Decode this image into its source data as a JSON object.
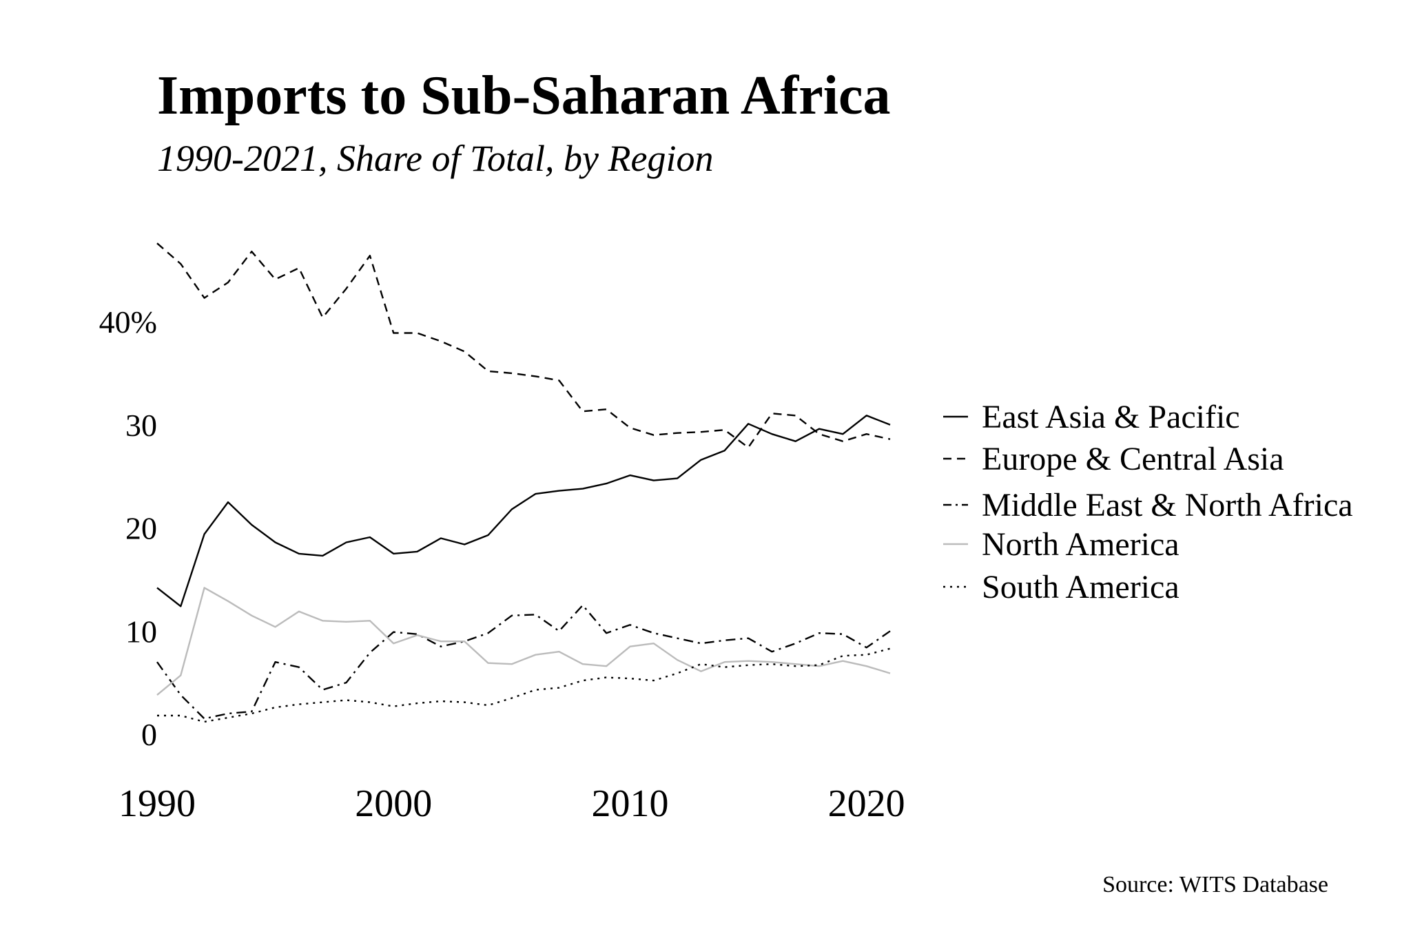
{
  "chart_data": {
    "type": "line",
    "title": "Imports to Sub-Saharan Africa",
    "subtitle": "1990-2021, Share of Total, by Region",
    "source": "Source: WITS Database",
    "xlabel": "",
    "ylabel": "",
    "xlim": [
      1990,
      2021
    ],
    "ylim": [
      0,
      48
    ],
    "grid": false,
    "legend_position": "right",
    "x_ticks": [
      {
        "value": 1990,
        "label": "1990"
      },
      {
        "value": 2000,
        "label": "2000"
      },
      {
        "value": 2010,
        "label": "2010"
      },
      {
        "value": 2020,
        "label": "2020"
      }
    ],
    "y_ticks": [
      {
        "value": 0,
        "label": "0"
      },
      {
        "value": 10,
        "label": "10"
      },
      {
        "value": 20,
        "label": "20"
      },
      {
        "value": 30,
        "label": "30"
      },
      {
        "value": 40,
        "label": "40%"
      }
    ],
    "x": [
      1990,
      1991,
      1992,
      1993,
      1994,
      1995,
      1996,
      1997,
      1998,
      1999,
      2000,
      2001,
      2002,
      2003,
      2004,
      2005,
      2006,
      2007,
      2008,
      2009,
      2010,
      2011,
      2012,
      2013,
      2014,
      2015,
      2016,
      2017,
      2018,
      2019,
      2020,
      2021
    ],
    "series": [
      {
        "name": "East Asia & Pacific",
        "color": "#000000",
        "dash": "solid",
        "values": [
          14.2,
          12.4,
          19.4,
          22.5,
          20.3,
          18.6,
          17.5,
          17.3,
          18.6,
          19.1,
          17.5,
          17.7,
          19.0,
          18.4,
          19.3,
          21.8,
          23.3,
          23.6,
          23.8,
          24.3,
          25.1,
          24.6,
          24.8,
          26.6,
          27.5,
          30.1,
          29.1,
          28.4,
          29.6,
          29.1,
          30.9,
          30.0
        ]
      },
      {
        "name": "Europe & Central Asia",
        "color": "#000000",
        "dash": "dashed",
        "values": [
          47.6,
          45.6,
          42.3,
          43.8,
          46.8,
          44.1,
          45.2,
          40.4,
          43.2,
          46.4,
          38.9,
          38.9,
          38.1,
          37.1,
          35.2,
          35.0,
          34.7,
          34.3,
          31.3,
          31.5,
          29.7,
          29.0,
          29.2,
          29.3,
          29.5,
          27.8,
          31.1,
          30.9,
          29.1,
          28.4,
          29.1,
          28.6
        ]
      },
      {
        "name": "Middle East & North Africa",
        "color": "#000000",
        "dash": "dashdot",
        "values": [
          7.0,
          3.8,
          1.5,
          2.0,
          2.2,
          7.0,
          6.5,
          4.3,
          5.0,
          7.9,
          9.9,
          9.7,
          8.5,
          9.0,
          9.8,
          11.5,
          11.6,
          10.0,
          12.5,
          9.8,
          10.6,
          9.8,
          9.3,
          8.8,
          9.1,
          9.3,
          8.0,
          8.8,
          9.8,
          9.7,
          8.4,
          10.0
        ]
      },
      {
        "name": "North America",
        "color": "#bbbbbb",
        "dash": "solid",
        "values": [
          3.8,
          5.7,
          14.2,
          12.9,
          11.5,
          10.4,
          11.9,
          11.0,
          10.9,
          11.0,
          8.8,
          9.6,
          9.0,
          9.0,
          6.9,
          6.8,
          7.7,
          8.0,
          6.8,
          6.6,
          8.5,
          8.8,
          7.2,
          6.1,
          7.0,
          7.1,
          7.0,
          6.8,
          6.6,
          7.1,
          6.6,
          5.9
        ]
      },
      {
        "name": "South America",
        "color": "#000000",
        "dash": "dotted",
        "values": [
          1.8,
          1.8,
          1.2,
          1.6,
          2.0,
          2.6,
          2.9,
          3.1,
          3.3,
          3.1,
          2.7,
          3.0,
          3.2,
          3.1,
          2.8,
          3.5,
          4.3,
          4.5,
          5.2,
          5.5,
          5.4,
          5.2,
          5.9,
          6.8,
          6.5,
          6.7,
          6.8,
          6.6,
          6.7,
          7.6,
          7.7,
          8.3
        ]
      }
    ]
  }
}
